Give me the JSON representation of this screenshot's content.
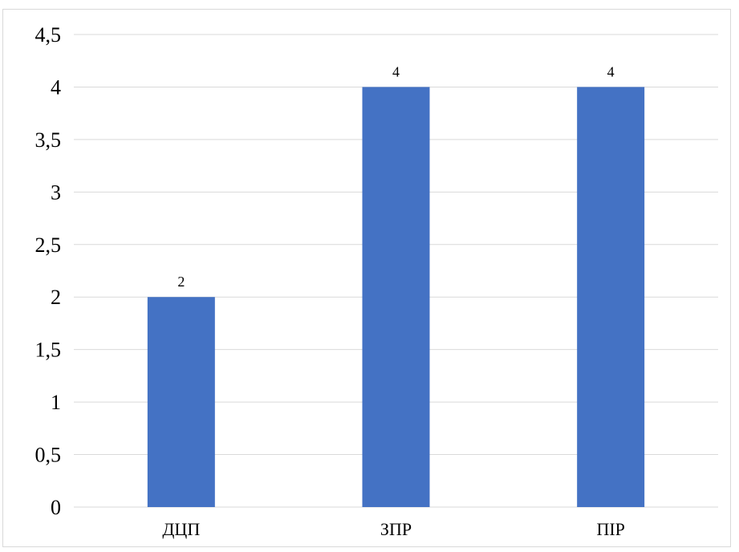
{
  "chart_data": {
    "type": "bar",
    "categories": [
      "ДЦП",
      "ЗПР",
      "ПІР"
    ],
    "values": [
      2,
      4,
      4
    ],
    "title": "",
    "xlabel": "",
    "ylabel": "",
    "ylim": [
      0,
      4.5
    ],
    "yticks": [
      "0",
      "0,5",
      "1",
      "1,5",
      "2",
      "2,5",
      "3",
      "3,5",
      "4",
      "4,5"
    ],
    "grid": true,
    "legend": "none",
    "bar_color": "#4472c4",
    "grid_color": "#d9d9d9",
    "data_labels": true
  }
}
